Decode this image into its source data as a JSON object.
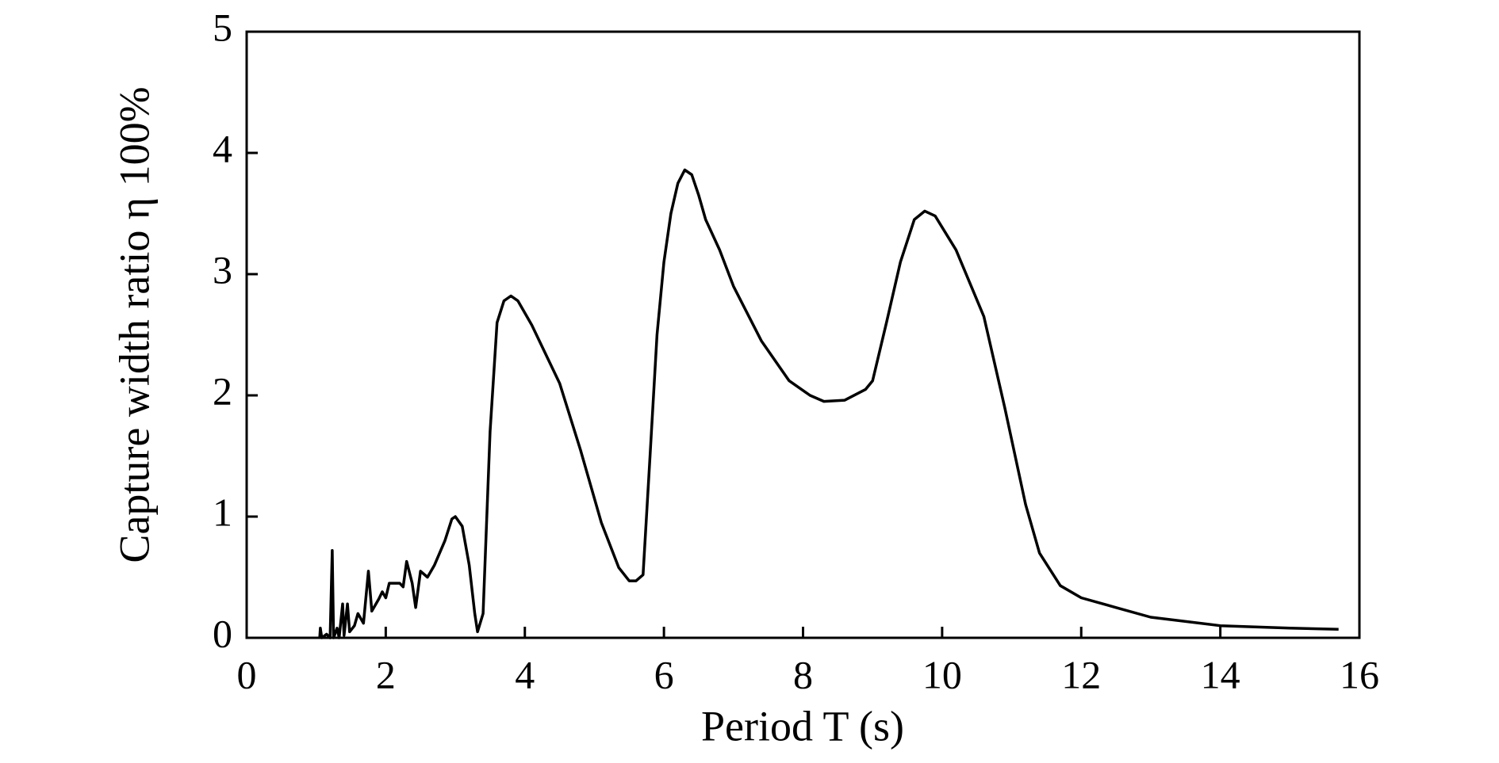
{
  "chart_data": {
    "type": "line",
    "x_label": "Period T (s)",
    "y_label": "Capture width ratio η 100%",
    "xlim": [
      0,
      16
    ],
    "ylim": [
      0,
      5
    ],
    "xticks": [
      0,
      2,
      4,
      6,
      8,
      10,
      12,
      14,
      16
    ],
    "yticks": [
      0,
      1,
      2,
      3,
      4,
      5
    ],
    "series": [
      {
        "color": "#000000",
        "x": [
          1.05,
          1.06,
          1.08,
          1.15,
          1.2,
          1.23,
          1.25,
          1.3,
          1.33,
          1.38,
          1.4,
          1.45,
          1.48,
          1.55,
          1.6,
          1.68,
          1.75,
          1.8,
          1.9,
          1.95,
          2.0,
          2.05,
          2.2,
          2.25,
          2.3,
          2.38,
          2.43,
          2.5,
          2.6,
          2.7,
          2.85,
          2.95,
          3.0,
          3.1,
          3.2,
          3.28,
          3.32,
          3.4,
          3.5,
          3.6,
          3.7,
          3.8,
          3.9,
          4.1,
          4.5,
          4.8,
          5.1,
          5.35,
          5.5,
          5.6,
          5.7,
          5.8,
          5.9,
          6.0,
          6.1,
          6.2,
          6.3,
          6.4,
          6.5,
          6.6,
          6.8,
          7.0,
          7.4,
          7.8,
          8.1,
          8.3,
          8.6,
          8.9,
          9.0,
          9.2,
          9.4,
          9.6,
          9.75,
          9.9,
          10.2,
          10.6,
          10.9,
          11.2,
          11.4,
          11.7,
          12.0,
          12.5,
          13.0,
          14.0,
          15.0,
          15.7
        ],
        "values": [
          0,
          0.08,
          0,
          0.03,
          0,
          0.72,
          0,
          0.08,
          0,
          0.28,
          0.02,
          0.28,
          0.05,
          0.1,
          0.2,
          0.12,
          0.55,
          0.22,
          0.32,
          0.38,
          0.33,
          0.45,
          0.45,
          0.42,
          0.63,
          0.45,
          0.25,
          0.55,
          0.5,
          0.6,
          0.8,
          0.98,
          1.0,
          0.92,
          0.6,
          0.2,
          0.05,
          0.2,
          1.7,
          2.6,
          2.78,
          2.82,
          2.78,
          2.58,
          2.1,
          1.55,
          0.95,
          0.58,
          0.47,
          0.47,
          0.52,
          1.5,
          2.5,
          3.1,
          3.5,
          3.75,
          3.86,
          3.82,
          3.65,
          3.45,
          3.2,
          2.9,
          2.45,
          2.12,
          2.0,
          1.95,
          1.96,
          2.05,
          2.12,
          2.6,
          3.1,
          3.45,
          3.52,
          3.48,
          3.2,
          2.65,
          1.9,
          1.1,
          0.7,
          0.43,
          0.33,
          0.25,
          0.17,
          0.1,
          0.08,
          0.07
        ]
      }
    ]
  }
}
